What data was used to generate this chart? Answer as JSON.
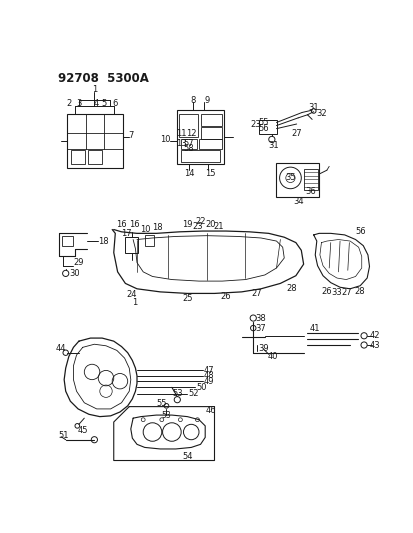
{
  "title": "92708  5300A",
  "bg_color": "#ffffff",
  "line_color": "#1a1a1a",
  "title_fontsize": 8.5,
  "label_fontsize": 6.0
}
